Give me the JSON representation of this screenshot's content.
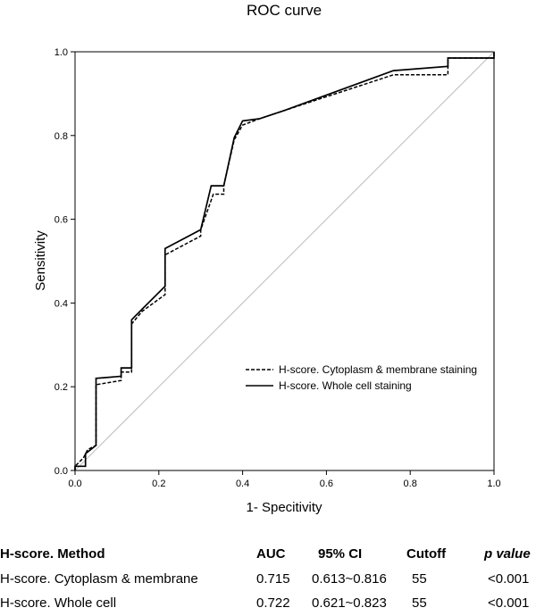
{
  "chart_data": {
    "type": "line",
    "title": "ROC curve",
    "xlabel": "1- Specitivity",
    "ylabel": "Sensitivity",
    "xlim": [
      0,
      1
    ],
    "ylim": [
      0,
      1
    ],
    "xticks": [
      "0.0",
      "0.2",
      "0.4",
      "0.6",
      "0.8",
      "1.0"
    ],
    "yticks": [
      "0.0",
      "0.2",
      "0.4",
      "0.6",
      "0.8",
      "1.0"
    ],
    "legend_position": "lower-right",
    "reference_line": [
      [
        0,
        0
      ],
      [
        1,
        1
      ]
    ],
    "series": [
      {
        "name": "H-score. Cytoplasm & membrane staining",
        "style": "dashed",
        "points": [
          [
            0,
            0
          ],
          [
            0,
            0.01
          ],
          [
            0.02,
            0.03
          ],
          [
            0.03,
            0.05
          ],
          [
            0.05,
            0.06
          ],
          [
            0.05,
            0.205
          ],
          [
            0.11,
            0.215
          ],
          [
            0.11,
            0.235
          ],
          [
            0.135,
            0.235
          ],
          [
            0.135,
            0.35
          ],
          [
            0.16,
            0.38
          ],
          [
            0.215,
            0.42
          ],
          [
            0.215,
            0.515
          ],
          [
            0.3,
            0.56
          ],
          [
            0.3,
            0.575
          ],
          [
            0.33,
            0.66
          ],
          [
            0.355,
            0.66
          ],
          [
            0.355,
            0.68
          ],
          [
            0.38,
            0.79
          ],
          [
            0.4,
            0.825
          ],
          [
            0.44,
            0.84
          ],
          [
            0.5,
            0.86
          ],
          [
            0.76,
            0.945
          ],
          [
            0.89,
            0.945
          ],
          [
            0.89,
            0.985
          ],
          [
            1,
            0.985
          ],
          [
            1,
            1
          ]
        ]
      },
      {
        "name": "H-score. Whole cell staining",
        "style": "solid",
        "points": [
          [
            0,
            0
          ],
          [
            0,
            0.01
          ],
          [
            0.025,
            0.01
          ],
          [
            0.025,
            0.04
          ],
          [
            0.05,
            0.06
          ],
          [
            0.05,
            0.22
          ],
          [
            0.11,
            0.225
          ],
          [
            0.11,
            0.245
          ],
          [
            0.135,
            0.245
          ],
          [
            0.135,
            0.36
          ],
          [
            0.16,
            0.385
          ],
          [
            0.215,
            0.44
          ],
          [
            0.215,
            0.53
          ],
          [
            0.3,
            0.575
          ],
          [
            0.325,
            0.68
          ],
          [
            0.355,
            0.68
          ],
          [
            0.38,
            0.795
          ],
          [
            0.4,
            0.835
          ],
          [
            0.44,
            0.84
          ],
          [
            0.5,
            0.86
          ],
          [
            0.76,
            0.955
          ],
          [
            0.89,
            0.965
          ],
          [
            0.89,
            0.985
          ],
          [
            1,
            0.985
          ],
          [
            1,
            1
          ]
        ]
      }
    ]
  },
  "table": {
    "headers": [
      "H-score. Method",
      "AUC",
      "95% CI",
      "Cutoff",
      "p value"
    ],
    "rows": [
      [
        "H-score. Cytoplasm & membrane",
        "0.715",
        "0.613~0.816",
        "55",
        "<0.001"
      ],
      [
        "H-score. Whole cell",
        "0.722",
        "0.621~0.823",
        "55",
        "<0.001"
      ]
    ]
  }
}
